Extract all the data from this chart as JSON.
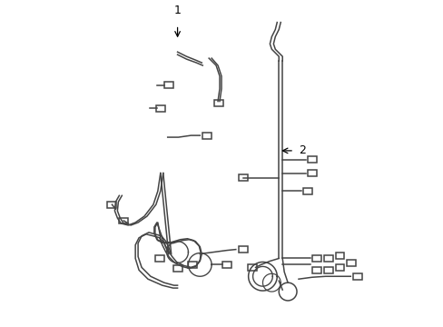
{
  "background_color": "#ffffff",
  "line_color": "#444444",
  "line_width": 1.1,
  "label_color": "#000000",
  "figsize": [
    4.89,
    3.6
  ],
  "dpi": 100,
  "label1": "1",
  "label2": "2"
}
